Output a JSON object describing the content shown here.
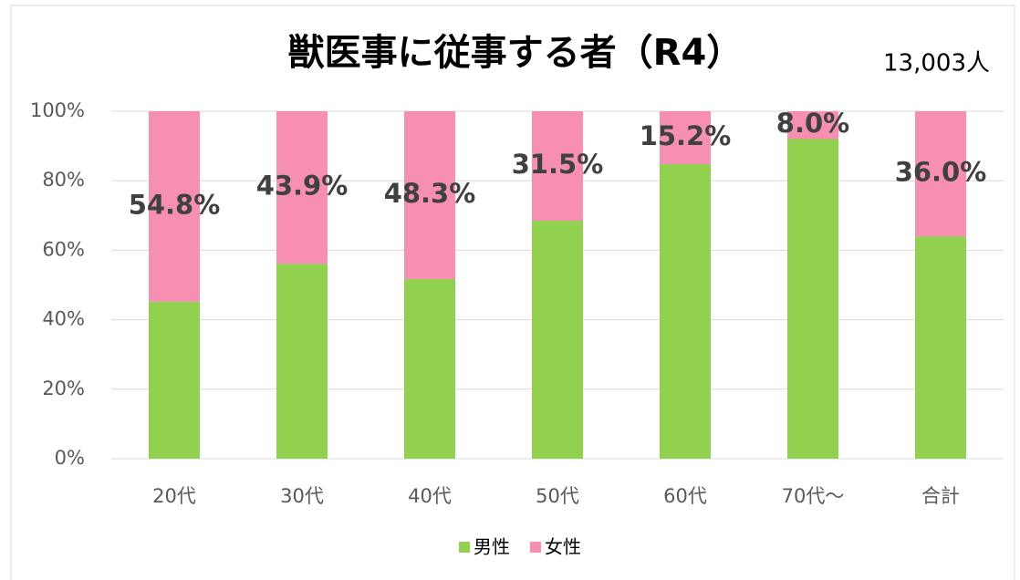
{
  "chart_data": {
    "type": "stacked_bar_100",
    "title": "獣医事に従事する者（R4）",
    "annotation": "13,003人",
    "categories": [
      "20代",
      "30代",
      "40代",
      "50代",
      "60代",
      "70代～",
      "合計"
    ],
    "series": [
      {
        "name": "男性",
        "color": "#92d050",
        "values": [
          45.2,
          56.1,
          51.7,
          68.5,
          84.8,
          92.0,
          64.0
        ]
      },
      {
        "name": "女性",
        "color": "#f78fb3",
        "values": [
          54.8,
          43.9,
          48.3,
          31.5,
          15.2,
          8.0,
          36.0
        ],
        "value_labels": [
          "54.8%",
          "43.9%",
          "48.3%",
          "31.5%",
          "15.2%",
          "8.0%",
          "36.0%"
        ]
      }
    ],
    "ylim": [
      0,
      100
    ],
    "yticks": [
      {
        "value": 0,
        "label": "0%"
      },
      {
        "value": 20,
        "label": "20%"
      },
      {
        "value": 40,
        "label": "40%"
      },
      {
        "value": 60,
        "label": "60%"
      },
      {
        "value": 80,
        "label": "80%"
      },
      {
        "value": 100,
        "label": "100%"
      }
    ],
    "grid": true,
    "legend": "bottom"
  }
}
